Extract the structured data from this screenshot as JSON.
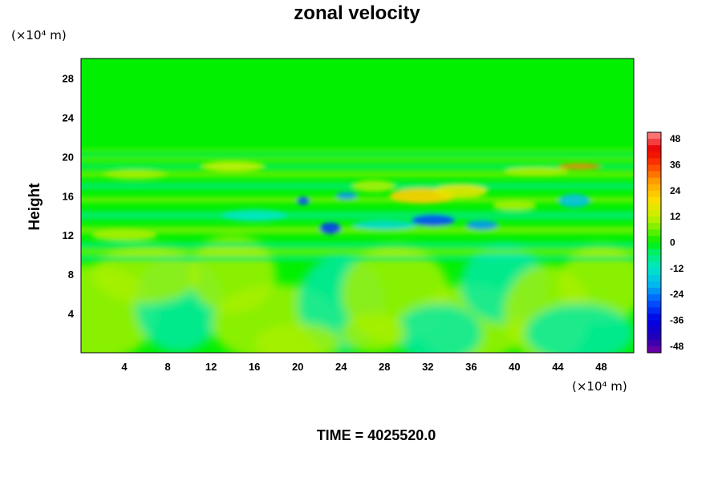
{
  "chart_data": {
    "type": "heatmap",
    "title": "zonal velocity",
    "ylabel": "Height",
    "xlabel": "",
    "y_unit": "(×10⁴ m)",
    "x_unit": "(×10⁴ m)",
    "xlim": [
      0,
      51
    ],
    "ylim": [
      0,
      30
    ],
    "x_ticks": [
      "4",
      "8",
      "12",
      "16",
      "20",
      "24",
      "28",
      "32",
      "36",
      "40",
      "44",
      "48"
    ],
    "x_tick_values": [
      4,
      8,
      12,
      16,
      20,
      24,
      28,
      32,
      36,
      40,
      44,
      48
    ],
    "y_ticks": [
      "4",
      "8",
      "12",
      "16",
      "20",
      "24",
      "28"
    ],
    "y_tick_values": [
      4,
      8,
      12,
      16,
      20,
      24,
      28
    ],
    "colorbar": {
      "labels": [
        "48",
        "36",
        "24",
        "12",
        "0",
        "-12",
        "-24",
        "-36",
        "-48"
      ],
      "values": [
        48,
        36,
        24,
        12,
        0,
        -12,
        -24,
        -36,
        -48
      ],
      "range": [
        -51,
        51
      ]
    },
    "grid": false,
    "legend": "colorbar-right",
    "colors": {
      "background_field": "#00f000",
      "positive": "#c8f000",
      "negative": "#00e0c0",
      "extreme_positive": "#ffc800",
      "extreme_negative": "#0050d0"
    }
  },
  "footer": {
    "time_text": "TIME = 4025520.0"
  }
}
